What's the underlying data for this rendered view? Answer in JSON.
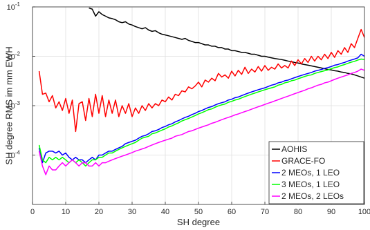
{
  "chart_data": {
    "type": "line",
    "x_label": "SH degree",
    "y_label": "SH degree RMS im mm EWH",
    "y_scale": "log",
    "grid": true,
    "legend_position": "lower right",
    "xlim": [
      0,
      100
    ],
    "ylim": [
      1e-05,
      0.1
    ],
    "xticks": [
      0,
      10,
      20,
      30,
      40,
      50,
      60,
      70,
      80,
      90,
      100
    ],
    "yticks": [
      {
        "value": 0.0001,
        "label": "10",
        "exponent": "-4"
      },
      {
        "value": 0.001,
        "label": "10",
        "exponent": "-3"
      },
      {
        "value": 0.01,
        "label": "10",
        "exponent": "-2"
      },
      {
        "value": 0.1,
        "label": "10",
        "exponent": "-1"
      }
    ],
    "x": [
      2,
      3,
      4,
      5,
      6,
      7,
      8,
      9,
      10,
      11,
      12,
      13,
      14,
      15,
      16,
      17,
      18,
      19,
      20,
      21,
      22,
      23,
      24,
      25,
      26,
      27,
      28,
      29,
      30,
      31,
      32,
      33,
      34,
      35,
      36,
      37,
      38,
      39,
      40,
      41,
      42,
      43,
      44,
      45,
      46,
      47,
      48,
      49,
      50,
      51,
      52,
      53,
      54,
      55,
      56,
      57,
      58,
      59,
      60,
      61,
      62,
      63,
      64,
      65,
      66,
      67,
      68,
      69,
      70,
      71,
      72,
      73,
      74,
      75,
      76,
      77,
      78,
      79,
      80,
      81,
      82,
      83,
      84,
      85,
      86,
      87,
      88,
      89,
      90,
      91,
      92,
      93,
      94,
      95,
      96,
      97,
      98,
      99,
      100
    ],
    "series": [
      {
        "name": "AOHIS",
        "color": "#000000",
        "values": [
          null,
          null,
          null,
          null,
          null,
          null,
          null,
          null,
          null,
          null,
          null,
          null,
          null,
          null,
          null,
          0.095,
          0.09,
          0.065,
          0.08,
          0.07,
          0.065,
          0.06,
          0.058,
          0.055,
          0.05,
          0.048,
          0.05,
          0.045,
          0.043,
          0.04,
          0.038,
          0.036,
          0.038,
          0.034,
          0.032,
          0.033,
          0.03,
          0.028,
          0.027,
          0.026,
          0.025,
          0.024,
          0.023,
          0.022,
          0.023,
          0.021,
          0.02,
          0.019,
          0.019,
          0.018,
          0.017,
          0.017,
          0.016,
          0.016,
          0.015,
          0.015,
          0.014,
          0.014,
          0.013,
          0.013,
          0.0125,
          0.012,
          0.012,
          0.0115,
          0.011,
          0.011,
          0.0105,
          0.01,
          0.01,
          0.0096,
          0.0093,
          0.009,
          0.0088,
          0.0086,
          0.0083,
          0.008,
          0.0078,
          0.0075,
          0.0073,
          0.007,
          0.0068,
          0.0066,
          0.0064,
          0.0062,
          0.006,
          0.0058,
          0.0056,
          0.0054,
          0.0053,
          0.0051,
          0.005,
          0.0048,
          0.0047,
          0.0045,
          0.0044,
          0.0042,
          0.004,
          0.0038,
          0.0036
        ]
      },
      {
        "name": "GRACE-FO",
        "color": "#ff0000",
        "values": [
          0.005,
          0.0017,
          0.0018,
          0.0012,
          0.0016,
          0.0009,
          0.0012,
          0.0008,
          0.0014,
          0.0007,
          0.0013,
          0.0003,
          0.0011,
          0.0012,
          0.0005,
          0.0014,
          0.0006,
          0.0017,
          0.0007,
          0.0016,
          0.0006,
          0.0013,
          0.0007,
          0.0013,
          0.0006,
          0.001,
          0.0007,
          0.0011,
          0.0006,
          0.0009,
          0.0007,
          0.001,
          0.0008,
          0.0011,
          0.0009,
          0.0011,
          0.001,
          0.0013,
          0.0012,
          0.0015,
          0.0013,
          0.0017,
          0.0016,
          0.002,
          0.0019,
          0.0024,
          0.0022,
          0.0025,
          0.003,
          0.0024,
          0.0033,
          0.003,
          0.0036,
          0.0032,
          0.0045,
          0.0038,
          0.0042,
          0.0036,
          0.005,
          0.004,
          0.0052,
          0.0043,
          0.006,
          0.0045,
          0.0055,
          0.0048,
          0.0062,
          0.005,
          0.0065,
          0.0052,
          0.006,
          0.0055,
          0.007,
          0.0058,
          0.0065,
          0.0058,
          0.008,
          0.0065,
          0.0085,
          0.007,
          0.009,
          0.0075,
          0.01,
          0.008,
          0.01,
          0.0085,
          0.011,
          0.009,
          0.012,
          0.0095,
          0.013,
          0.011,
          0.015,
          0.012,
          0.018,
          0.015,
          0.023,
          0.035,
          0.024
        ]
      },
      {
        "name": "2 MEOs, 1 LEO",
        "color": "#0000ff",
        "values": [
          0.00014,
          7e-05,
          0.00011,
          0.00012,
          0.00012,
          0.00011,
          0.00012,
          0.0001,
          0.00011,
          9e-05,
          8e-05,
          9e-05,
          8e-05,
          8e-05,
          7e-05,
          8e-05,
          9e-05,
          8e-05,
          0.0001,
          0.0001,
          0.00011,
          0.00012,
          0.00012,
          0.00013,
          0.00014,
          0.00015,
          0.00017,
          0.00018,
          0.00019,
          0.0002,
          0.00022,
          0.00024,
          0.00025,
          0.00027,
          0.0003,
          0.00031,
          0.00033,
          0.00036,
          0.00038,
          0.00041,
          0.00043,
          0.00047,
          0.0005,
          0.00054,
          0.00058,
          0.00061,
          0.00066,
          0.0007,
          0.00076,
          0.0008,
          0.00086,
          0.00092,
          0.00096,
          0.00103,
          0.0011,
          0.00115,
          0.0012,
          0.0013,
          0.00135,
          0.00145,
          0.0015,
          0.0016,
          0.0017,
          0.0018,
          0.0019,
          0.002,
          0.0021,
          0.0022,
          0.0023,
          0.00245,
          0.0026,
          0.0027,
          0.0029,
          0.003,
          0.0032,
          0.0033,
          0.0035,
          0.0037,
          0.0039,
          0.0041,
          0.0043,
          0.0045,
          0.0047,
          0.005,
          0.0052,
          0.0054,
          0.0057,
          0.0059,
          0.0062,
          0.0066,
          0.0068,
          0.0072,
          0.0075,
          0.008,
          0.0084,
          0.0088,
          0.0093,
          0.011,
          0.01
        ]
      },
      {
        "name": "3 MEOs, 1 LEO",
        "color": "#00ff00",
        "values": [
          0.00016,
          8e-05,
          7e-05,
          9e-05,
          8e-05,
          9e-05,
          8e-05,
          9e-05,
          8e-05,
          7e-05,
          8e-05,
          7e-05,
          8e-05,
          7e-05,
          6e-05,
          7e-05,
          8e-05,
          8e-05,
          9e-05,
          9e-05,
          0.0001,
          0.00011,
          0.00011,
          0.00012,
          0.00013,
          0.00014,
          0.00015,
          0.00016,
          0.00017,
          0.00018,
          0.0002,
          0.00022,
          0.00023,
          0.00024,
          0.00027,
          0.00028,
          0.0003,
          0.00032,
          0.00034,
          0.00037,
          0.00039,
          0.00042,
          0.00045,
          0.00049,
          0.00052,
          0.00055,
          0.00059,
          0.00063,
          0.00068,
          0.00072,
          0.00077,
          0.00083,
          0.00086,
          0.00093,
          0.00099,
          0.00104,
          0.00108,
          0.00117,
          0.00122,
          0.0013,
          0.00135,
          0.00144,
          0.00153,
          0.00162,
          0.00171,
          0.0018,
          0.0019,
          0.002,
          0.0021,
          0.0022,
          0.0023,
          0.0024,
          0.0026,
          0.0027,
          0.0029,
          0.003,
          0.0032,
          0.0033,
          0.0035,
          0.0037,
          0.0039,
          0.0041,
          0.0042,
          0.0045,
          0.0047,
          0.0049,
          0.0051,
          0.0053,
          0.0056,
          0.0059,
          0.0061,
          0.0065,
          0.0068,
          0.0072,
          0.0076,
          0.0079,
          0.0084,
          0.0088,
          0.0086
        ]
      },
      {
        "name": "2 MEOs, 2 LEOs",
        "color": "#ff00ff",
        "values": [
          0.00012,
          6e-05,
          4e-05,
          6e-05,
          5e-05,
          5e-05,
          6e-05,
          7e-05,
          6e-05,
          7e-05,
          8e-05,
          7e-05,
          6e-05,
          7e-05,
          7e-05,
          6e-05,
          6e-05,
          7e-05,
          6e-05,
          7e-05,
          7e-05,
          7.5e-05,
          8e-05,
          8.5e-05,
          9e-05,
          9.5e-05,
          0.0001,
          0.000106,
          0.000112,
          0.00012,
          0.000126,
          0.000133,
          0.00014,
          0.00015,
          0.00016,
          0.00017,
          0.00018,
          0.00019,
          0.0002,
          0.00021,
          0.00022,
          0.00024,
          0.00025,
          0.00026,
          0.00028,
          0.0003,
          0.00031,
          0.00033,
          0.00035,
          0.00037,
          0.00039,
          0.00041,
          0.00044,
          0.00046,
          0.00049,
          0.00052,
          0.00055,
          0.00058,
          0.00061,
          0.00065,
          0.00068,
          0.00072,
          0.00076,
          0.0008,
          0.00085,
          0.0009,
          0.00095,
          0.001,
          0.00106,
          0.00112,
          0.00118,
          0.00125,
          0.00132,
          0.0014,
          0.00148,
          0.00156,
          0.00165,
          0.00175,
          0.00185,
          0.00195,
          0.00205,
          0.0022,
          0.0023,
          0.00245,
          0.0026,
          0.0027,
          0.0029,
          0.003,
          0.0032,
          0.0034,
          0.0036,
          0.0038,
          0.004,
          0.0042,
          0.0045,
          0.0047,
          0.005,
          0.0055,
          0.0052
        ]
      }
    ]
  }
}
